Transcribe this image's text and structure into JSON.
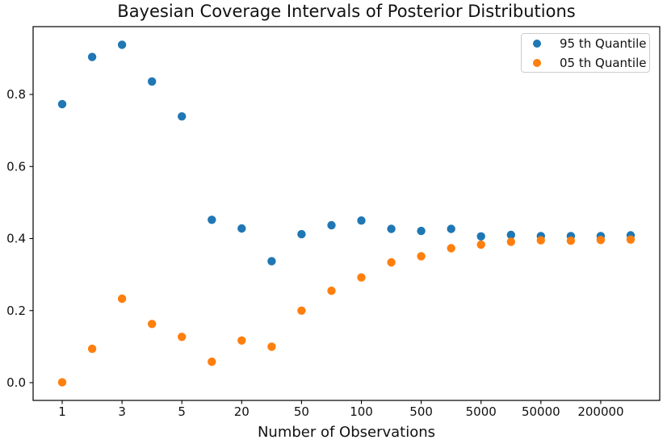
{
  "figure": {
    "title": "Bayesian Coverage Intervals of Posterior Distributions",
    "xlabel": "Number of Observations"
  },
  "legend": {
    "position": "upper-right",
    "items": [
      {
        "label": "95 th Quantile",
        "color": "#1f77b4",
        "marker": "dot"
      },
      {
        "label": "05 th Quantile",
        "color": "#ff7f0e",
        "marker": "dot"
      }
    ]
  },
  "chart_data": {
    "type": "scatter",
    "title": "Bayesian Coverage Intervals of Posterior Distributions",
    "xlabel": "Number of Observations",
    "ylabel": "",
    "x_scale": "log-like, 20 evenly spaced points, every other point tick-labeled",
    "x": [
      1,
      2,
      3,
      4,
      5,
      10,
      20,
      30,
      50,
      70,
      100,
      200,
      500,
      1000,
      5000,
      10000,
      50000,
      100000,
      200000,
      500000
    ],
    "x_tick_indices": [
      0,
      2,
      4,
      6,
      8,
      10,
      12,
      14,
      16,
      18
    ],
    "x_tick_labels": [
      "1",
      "3",
      "5",
      "20",
      "50",
      "100",
      "500",
      "5000",
      "50000",
      "200000"
    ],
    "y_ticks": [
      0.0,
      0.2,
      0.4,
      0.6,
      0.8
    ],
    "y_tick_labels": [
      "0.0",
      "0.2",
      "0.4",
      "0.6",
      "0.8"
    ],
    "ylim": [
      -0.049,
      0.988
    ],
    "grid": false,
    "marker_color_95": "#1f77b4",
    "marker_color_05": "#ff7f0e",
    "series": [
      {
        "name": "95 th Quantile",
        "color": "#1f77b4",
        "values": [
          0.773,
          0.904,
          0.938,
          0.836,
          0.739,
          0.452,
          0.428,
          0.337,
          0.412,
          0.437,
          0.45,
          0.427,
          0.421,
          0.427,
          0.406,
          0.41,
          0.407,
          0.407,
          0.407,
          0.409
        ]
      },
      {
        "name": "05 th Quantile",
        "color": "#ff7f0e",
        "values": [
          0.001,
          0.094,
          0.233,
          0.163,
          0.127,
          0.058,
          0.117,
          0.1,
          0.2,
          0.255,
          0.292,
          0.334,
          0.351,
          0.373,
          0.383,
          0.391,
          0.395,
          0.394,
          0.396,
          0.397
        ]
      }
    ]
  }
}
